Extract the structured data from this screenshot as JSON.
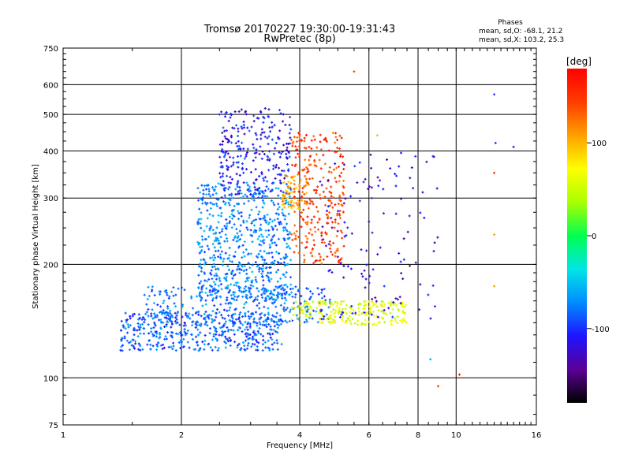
{
  "chart_data": {
    "type": "scatter",
    "title": "Tromsø 20170227 19:30:00-19:31:43",
    "subtitle": "RwPretec (8p)",
    "xlabel": "Frequency [MHz]",
    "ylabel": "Stationary phase Virtual Height [km]",
    "x_scale": "log",
    "y_scale": "log",
    "xlim": [
      1,
      16
    ],
    "ylim": [
      75,
      750
    ],
    "grid": true,
    "x_ticks": [
      1,
      2,
      4,
      6,
      8,
      10,
      16
    ],
    "y_ticks": [
      75,
      100,
      200,
      300,
      400,
      500,
      600,
      750
    ],
    "phases_box": {
      "heading": "Phases",
      "line_o": "mean, sd,O: -68.1, 21.2",
      "line_x": "mean, sd,X: 103.2, 25.3"
    },
    "colorbar": {
      "label": "[deg]",
      "range": [
        -180,
        180
      ],
      "ticks": [
        100,
        0,
        -100
      ],
      "colormap": [
        "#000000",
        "#5a0096",
        "#1e14ff",
        "#008cff",
        "#00e6e6",
        "#00ff50",
        "#aaff00",
        "#ffff00",
        "#ffa000",
        "#ff3c00",
        "#ff0000"
      ]
    },
    "series": [
      {
        "id": "low-o-trace",
        "freq_range": [
          1.4,
          3.6
        ],
        "height_range": [
          118,
          150
        ],
        "phase": -85,
        "count": 460
      },
      {
        "id": "low-x-trace",
        "freq_range": [
          1.6,
          4.8
        ],
        "height_range": [
          140,
          175
        ],
        "phase": -80,
        "count": 300
      },
      {
        "id": "lower-band",
        "freq_range": [
          3.8,
          7.5
        ],
        "height_range": [
          138,
          160
        ],
        "phase": 60,
        "count": 220
      },
      {
        "id": "dense-cloud-mid",
        "freq_range": [
          2.2,
          3.8
        ],
        "height_range": [
          160,
          330
        ],
        "phase": -75,
        "count": 650
      },
      {
        "id": "upper-cloud",
        "freq_range": [
          2.5,
          3.8
        ],
        "height_range": [
          300,
          520
        ],
        "phase": -110,
        "count": 260
      },
      {
        "id": "x-mode-orange",
        "freq_range": [
          3.8,
          5.2
        ],
        "height_range": [
          200,
          450
        ],
        "phase": 145,
        "count": 280
      },
      {
        "id": "yellow-segment",
        "freq_range": [
          3.6,
          4.2
        ],
        "height_range": [
          280,
          350
        ],
        "phase": 105,
        "count": 60
      },
      {
        "id": "right-scatter",
        "freq_range": [
          4.5,
          9.0
        ],
        "height_range": [
          140,
          400
        ],
        "phase": -120,
        "count": 130
      },
      {
        "id": "sparse-outliers",
        "points": [
          [
            12.5,
            565,
            -100
          ],
          [
            12.6,
            420,
            -100
          ],
          [
            14.0,
            410,
            -110
          ],
          [
            12.5,
            350,
            150
          ],
          [
            12.5,
            240,
            110
          ],
          [
            12.5,
            175,
            110
          ],
          [
            10.2,
            102,
            175
          ],
          [
            9.0,
            95,
            150
          ],
          [
            8.6,
            112,
            -60
          ],
          [
            6.3,
            440,
            100
          ],
          [
            5.5,
            650,
            140
          ]
        ]
      }
    ]
  }
}
